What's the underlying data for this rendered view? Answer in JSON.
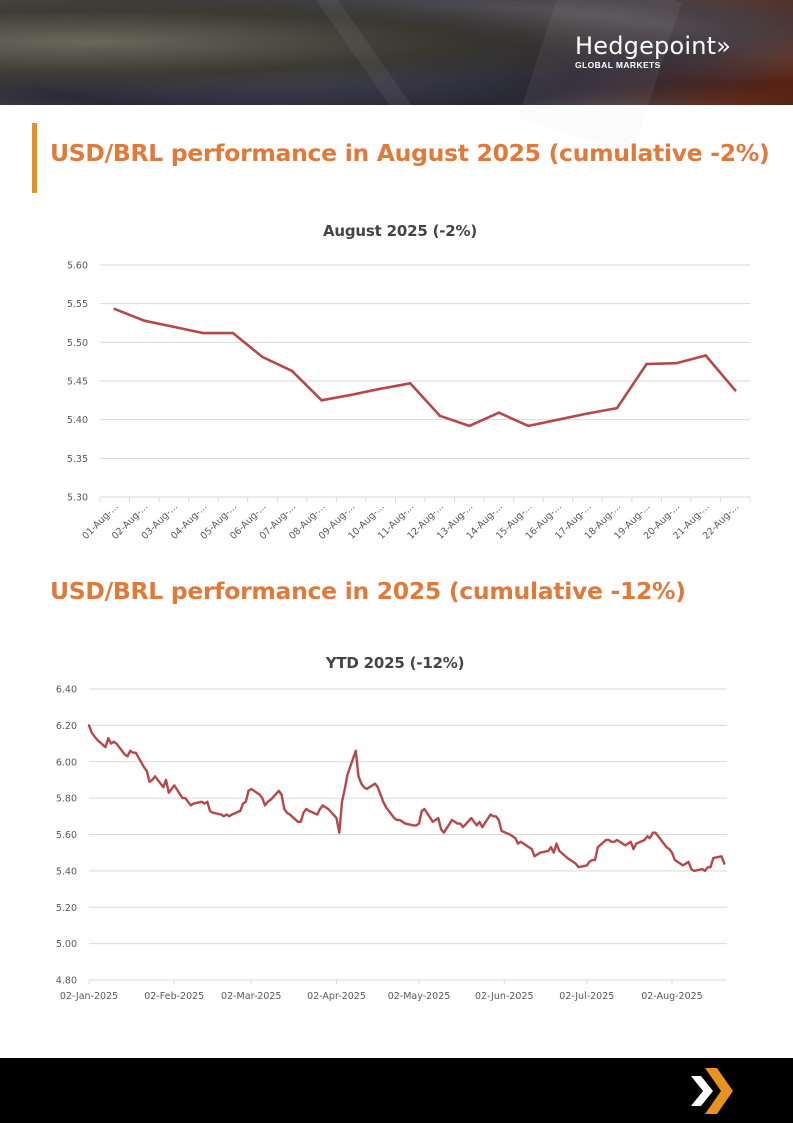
{
  "banner": {
    "logo_name": "Hedgepoint",
    "logo_mark": "»",
    "logo_subtitle": "GLOBAL MARKETS"
  },
  "sections": [
    {
      "title": "USD/BRL performance in August 2025 (cumulative -2%)"
    },
    {
      "title": "USD/BRL performance in 2025 (cumulative -12%)"
    }
  ],
  "colors": {
    "accent_orange": "#e8921f",
    "title_orange": "#e07a3a",
    "line_red": "#b5494a",
    "gridline": "#d9d9d9",
    "footer_bg": "#000000"
  },
  "footer": {
    "icon": "double-chevron-logo-icon"
  },
  "chart_data": [
    {
      "type": "line",
      "title": "August 2025 (-2%)",
      "xlabel": "",
      "ylabel": "",
      "ylim": [
        5.3,
        5.6
      ],
      "yticks": [
        "5.60",
        "5.55",
        "5.50",
        "5.45",
        "5.40",
        "5.35",
        "5.30"
      ],
      "ytick_values": [
        5.6,
        5.55,
        5.5,
        5.45,
        5.4,
        5.35,
        5.3
      ],
      "grid": true,
      "legend": "none",
      "categories": [
        "01-Aug-...",
        "02-Aug-...",
        "03-Aug-...",
        "04-Aug-...",
        "05-Aug-...",
        "06-Aug-...",
        "07-Aug-...",
        "08-Aug-...",
        "09-Aug-...",
        "10-Aug-...",
        "11-Aug-...",
        "12-Aug-...",
        "13-Aug-...",
        "14-Aug-...",
        "15-Aug-...",
        "16-Aug-...",
        "17-Aug-...",
        "18-Aug-...",
        "19-Aug-...",
        "20-Aug-...",
        "21-Aug-...",
        "22-Aug-..."
      ],
      "series": [
        {
          "name": "USD/BRL",
          "values": [
            5.543,
            5.528,
            5.52,
            5.512,
            5.512,
            5.481,
            5.463,
            5.425,
            5.432,
            5.44,
            5.447,
            5.405,
            5.392,
            5.409,
            5.392,
            5.4,
            5.408,
            5.415,
            5.472,
            5.473,
            5.483,
            5.438
          ]
        }
      ]
    },
    {
      "type": "line",
      "title": "YTD 2025 (-12%)",
      "xlabel": "",
      "ylabel": "",
      "ylim": [
        4.8,
        6.4
      ],
      "yticks": [
        "6.40",
        "6.20",
        "6.00",
        "5.80",
        "5.60",
        "5.40",
        "5.20",
        "5.00",
        "4.80"
      ],
      "ytick_values": [
        6.4,
        6.2,
        6.0,
        5.8,
        5.6,
        5.4,
        5.2,
        5.0,
        4.8
      ],
      "xlim_days": [
        0,
        232
      ],
      "xticks": [
        "02-Jan-2025",
        "02-Feb-2025",
        "02-Mar-2025",
        "02-Apr-2025",
        "02-May-2025",
        "02-Jun-2025",
        "02-Jul-2025",
        "02-Aug-2025"
      ],
      "xtick_days": [
        0,
        31,
        59,
        90,
        120,
        151,
        181,
        212
      ],
      "grid": true,
      "legend": "none",
      "series": [
        {
          "name": "USD/BRL",
          "x_days": [
            0,
            1,
            2,
            3,
            6,
            7,
            8,
            9,
            10,
            13,
            14,
            15,
            16,
            17,
            20,
            21,
            22,
            23,
            24,
            27,
            28,
            29,
            30,
            31,
            34,
            35,
            36,
            37,
            38,
            41,
            42,
            43,
            44,
            45,
            48,
            49,
            50,
            51,
            52,
            55,
            56,
            57,
            58,
            59,
            62,
            63,
            64,
            65,
            66,
            69,
            70,
            71,
            72,
            73,
            76,
            77,
            78,
            79,
            80,
            83,
            84,
            85,
            86,
            87,
            90,
            91,
            92,
            93,
            94,
            97,
            98,
            99,
            100,
            101,
            104,
            105,
            106,
            107,
            108,
            111,
            112,
            113,
            114,
            115,
            118,
            119,
            120,
            121,
            122,
            125,
            126,
            127,
            128,
            129,
            132,
            133,
            134,
            135,
            136,
            139,
            140,
            141,
            142,
            143,
            146,
            147,
            148,
            149,
            150,
            153,
            154,
            155,
            156,
            157,
            160,
            161,
            162,
            163,
            164,
            167,
            168,
            169,
            170,
            171,
            174,
            175,
            176,
            177,
            178,
            181,
            182,
            183,
            184,
            185,
            188,
            189,
            190,
            191,
            192,
            195,
            196,
            197,
            198,
            199,
            202,
            203,
            204,
            205,
            206,
            209,
            210,
            211,
            212,
            213,
            216,
            217,
            218,
            219,
            220,
            223,
            224,
            225,
            226,
            227,
            230,
            231
          ],
          "values": [
            6.2,
            6.16,
            6.14,
            6.12,
            6.08,
            6.13,
            6.1,
            6.11,
            6.1,
            6.04,
            6.03,
            6.06,
            6.05,
            6.05,
            5.97,
            5.95,
            5.89,
            5.9,
            5.92,
            5.86,
            5.9,
            5.83,
            5.85,
            5.87,
            5.8,
            5.8,
            5.78,
            5.76,
            5.77,
            5.78,
            5.77,
            5.78,
            5.73,
            5.72,
            5.71,
            5.7,
            5.71,
            5.7,
            5.71,
            5.73,
            5.77,
            5.78,
            5.84,
            5.85,
            5.82,
            5.8,
            5.76,
            5.78,
            5.79,
            5.84,
            5.82,
            5.74,
            5.72,
            5.71,
            5.67,
            5.67,
            5.72,
            5.74,
            5.73,
            5.71,
            5.74,
            5.76,
            5.75,
            5.74,
            5.69,
            5.61,
            5.78,
            5.85,
            5.93,
            6.06,
            5.92,
            5.88,
            5.86,
            5.85,
            5.88,
            5.86,
            5.82,
            5.78,
            5.75,
            5.69,
            5.68,
            5.68,
            5.67,
            5.66,
            5.65,
            5.65,
            5.66,
            5.73,
            5.74,
            5.67,
            5.68,
            5.69,
            5.63,
            5.61,
            5.68,
            5.67,
            5.66,
            5.66,
            5.64,
            5.69,
            5.67,
            5.65,
            5.67,
            5.64,
            5.71,
            5.7,
            5.7,
            5.68,
            5.62,
            5.6,
            5.59,
            5.58,
            5.55,
            5.56,
            5.53,
            5.52,
            5.48,
            5.49,
            5.5,
            5.51,
            5.53,
            5.5,
            5.55,
            5.51,
            5.47,
            5.46,
            5.45,
            5.44,
            5.42,
            5.43,
            5.45,
            5.46,
            5.46,
            5.53,
            5.57,
            5.57,
            5.56,
            5.56,
            5.57,
            5.54,
            5.55,
            5.56,
            5.52,
            5.55,
            5.57,
            5.59,
            5.58,
            5.61,
            5.61,
            5.55,
            5.53,
            5.52,
            5.5,
            5.46,
            5.43,
            5.44,
            5.45,
            5.41,
            5.4,
            5.41,
            5.4,
            5.42,
            5.42,
            5.47,
            5.48,
            5.44
          ]
        }
      ]
    }
  ]
}
